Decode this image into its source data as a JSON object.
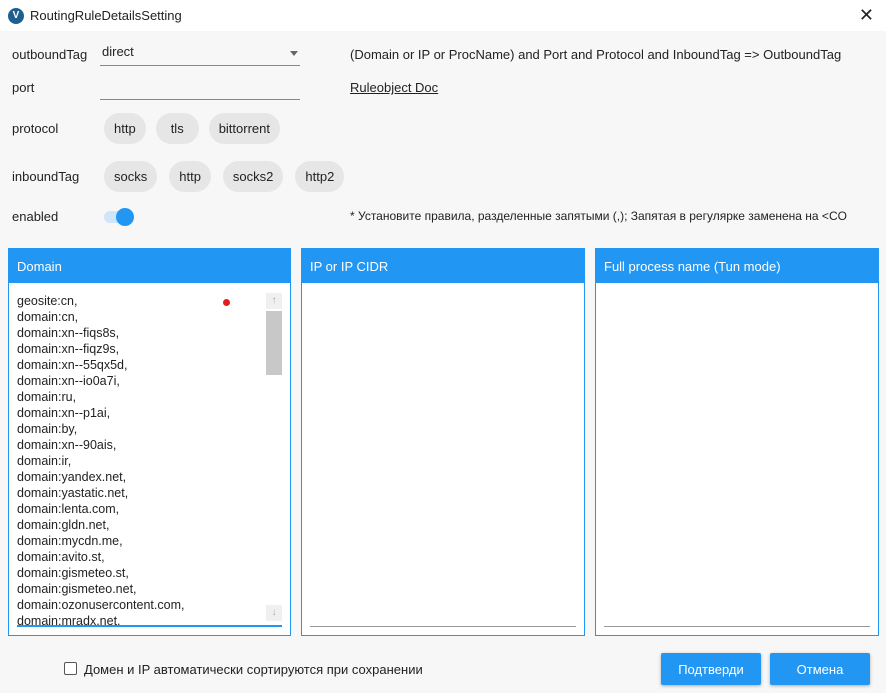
{
  "window": {
    "title": "RoutingRuleDetailsSetting",
    "logo": "V"
  },
  "form": {
    "outboundTag_label": "outboundTag",
    "outboundTag_value": "direct",
    "port_label": "port",
    "port_value": "",
    "protocol_label": "protocol",
    "protocols": [
      "http",
      "tls",
      "bittorrent"
    ],
    "inboundTag_label": "inboundTag",
    "inboundTags": [
      "socks",
      "http",
      "socks2",
      "http2"
    ],
    "enabled_label": "enabled",
    "enabled": true
  },
  "hint": "(Domain or IP or ProcName) and Port and Protocol and InboundTag => OutboundTag",
  "doc_link": "Ruleobject Doc",
  "note": "* Установите правила, разделенные запятыми (,); Запятая в регулярке заменена на <CO",
  "panels": {
    "domain": {
      "header": "Domain",
      "lines": [
        "geosite:cn,",
        "domain:cn,",
        "domain:xn--fiqs8s,",
        "domain:xn--fiqz9s,",
        "domain:xn--55qx5d,",
        "domain:xn--io0a7i,",
        "domain:ru,",
        "domain:xn--p1ai,",
        "domain:by,",
        "domain:xn--90ais,",
        "domain:ir,",
        "domain:yandex.net,",
        "domain:yastatic.net,",
        "domain:lenta.com,",
        "domain:gldn.net,",
        "domain:mycdn.me,",
        "domain:avito.st,",
        "domain:gismeteo.st,",
        "domain:gismeteo.net,",
        "domain:ozonusercontent.com,",
        "domain:mradx.net,"
      ]
    },
    "ip": {
      "header": "IP or IP CIDR"
    },
    "process": {
      "header": "Full process name (Tun mode)"
    }
  },
  "footer": {
    "autosort_label": "Домен и IP автоматически сортируются при сохранении",
    "autosort_checked": false,
    "confirm": "Подтверди",
    "cancel": "Отмена"
  },
  "colors": {
    "accent": "#2196f3",
    "unsaved_dot": "#e02020"
  }
}
